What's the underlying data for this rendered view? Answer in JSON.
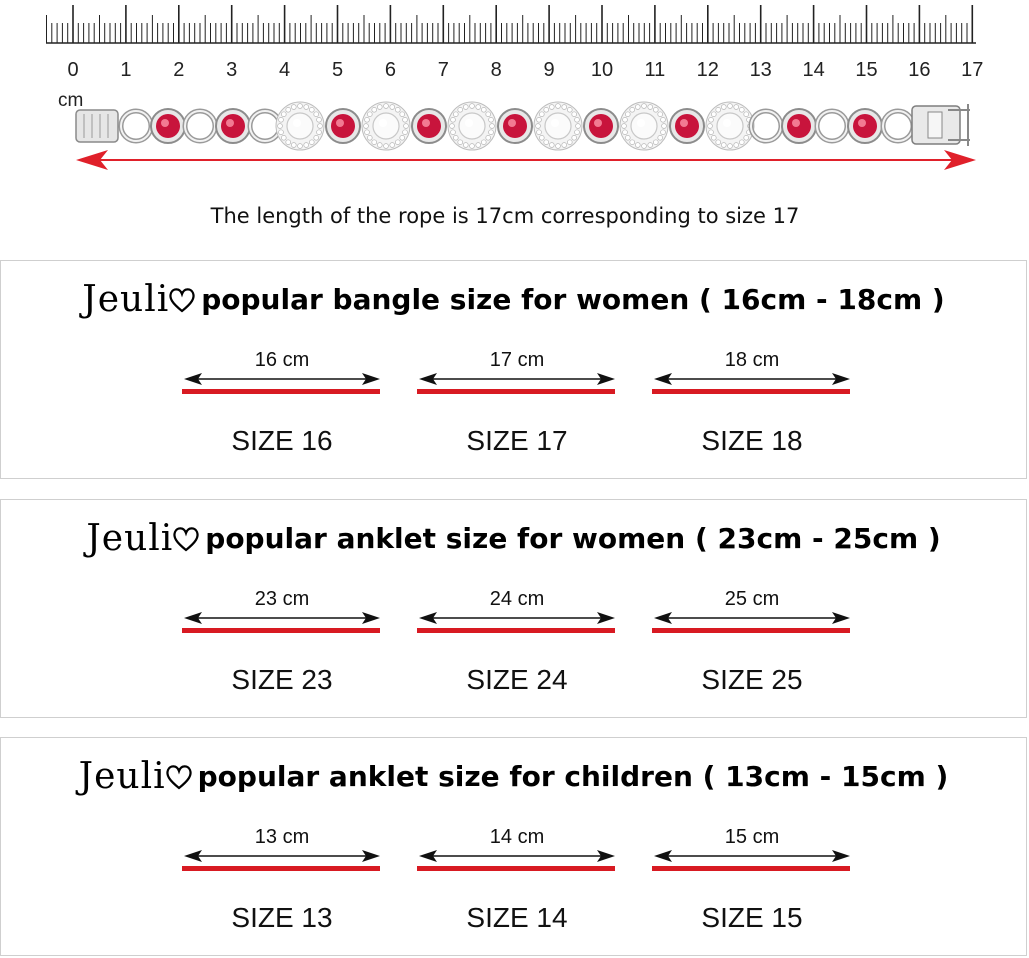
{
  "ruler": {
    "unit": "cm",
    "ticks": [
      "0",
      "1",
      "2",
      "3",
      "4",
      "5",
      "6",
      "7",
      "8",
      "9",
      "10",
      "11",
      "12",
      "13",
      "14",
      "15",
      "16",
      "17"
    ]
  },
  "caption": "The length of the rope is 17cm corresponding to size 17",
  "colors": {
    "ruby": "#c8143c",
    "silver": "#d8d8d8",
    "arrow_red": "#e0202a",
    "size_bar": "#d81a22"
  },
  "panels": [
    {
      "brand": "Jeuli",
      "title": "popular bangle size for women ( 16cm - 18cm )",
      "items": [
        {
          "cm": "16 cm",
          "size": "SIZE 16"
        },
        {
          "cm": "17 cm",
          "size": "SIZE 17"
        },
        {
          "cm": "18 cm",
          "size": "SIZE 18"
        }
      ]
    },
    {
      "brand": "Jeuli",
      "title": "popular anklet size for women ( 23cm - 25cm )",
      "items": [
        {
          "cm": "23 cm",
          "size": "SIZE 23"
        },
        {
          "cm": "24 cm",
          "size": "SIZE 24"
        },
        {
          "cm": "25 cm",
          "size": "SIZE 25"
        }
      ]
    },
    {
      "brand": "Jeuli",
      "title": "popular anklet size for children ( 13cm - 15cm )",
      "items": [
        {
          "cm": "13 cm",
          "size": "SIZE 13"
        },
        {
          "cm": "14 cm",
          "size": "SIZE 14"
        },
        {
          "cm": "15 cm",
          "size": "SIZE 15"
        }
      ]
    }
  ]
}
